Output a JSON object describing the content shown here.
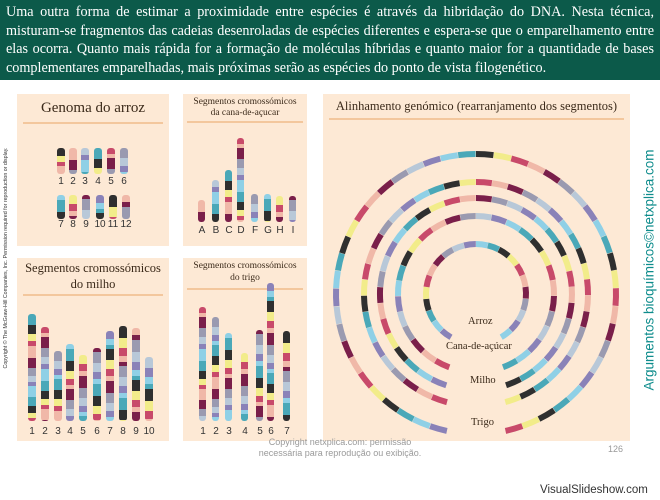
{
  "intro": "Uma outra forma de estimar a proximidade entre espécies é através da hibridação do DNA. Nesta técnica, misturam-se fragmentos das cadeias desenroladas de espécies diferentes e espera-se que o emparelhamento entre elas ocorra. Quanto mais rápida for a formação de moléculas híbridas e quanto maior for a quantidade de bases complementares emparelhadas, mais próximas serão as espécies do ponto de vista filogenético.",
  "copyright_vertical": "Copyright © The McGraw-Hill Companies, Inc. Permission required for reproduction or display.",
  "side_brand": "Argumentos bioquímicos©netxplica.com",
  "rice": {
    "title": "Genoma do arroz",
    "row1": [
      "1",
      "2",
      "3",
      "4",
      "5",
      "6"
    ],
    "row2": [
      "7",
      "8",
      "9",
      "10",
      "11",
      "12"
    ]
  },
  "sugarcane": {
    "title_l1": "Segmentos cromossómicos",
    "title_l2": "da cana-de-açucar",
    "labels": [
      "A",
      "B",
      "C",
      "D",
      "F",
      "G",
      "H",
      "I"
    ]
  },
  "maize": {
    "title_l1": "Segmentos cromossómicos",
    "title_l2": "do milho",
    "labels": [
      "1",
      "2",
      "3",
      "4",
      "5",
      "6",
      "7",
      "8",
      "9",
      "10"
    ]
  },
  "wheat": {
    "title_l1": "Segmentos cromossómicos",
    "title_l2": "do trigo",
    "labels": [
      "1",
      "2",
      "3",
      "4",
      "5",
      "6",
      "7"
    ]
  },
  "alignment": {
    "title": "Alinhamento genómico (rearranjamento dos segmentos)",
    "rings": [
      "Arroz",
      "Cana-de-açúcar",
      "Milho",
      "Trigo"
    ]
  },
  "footer": {
    "copy_l1": "Copyright netxplica.com: permissão",
    "copy_l2": "necessária para reprodução ou exibição.",
    "page": "126"
  },
  "watermark": "VisualSlideshow.com",
  "colors": {
    "header_bg": "#0c5a4a",
    "panel_bg": "#fde9d5",
    "segment_palette": [
      "#8fd0e6",
      "#f2ec8a",
      "#7a1f4a",
      "#8a82b8",
      "#2f2f2f",
      "#f0b8a8",
      "#b8c8d8",
      "#4aa8b8",
      "#c84a6a",
      "#9a9ab0"
    ]
  }
}
